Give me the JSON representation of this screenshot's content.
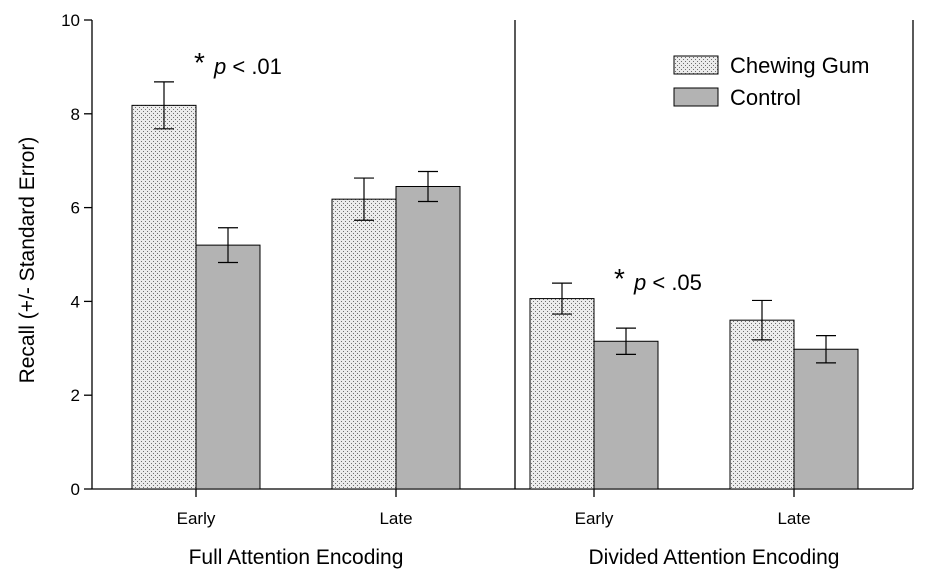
{
  "chart_data": {
    "type": "bar",
    "title": "",
    "ylabel": "Recall (+/- Standard Error)",
    "ylim": [
      0,
      10
    ],
    "yticks": [
      0,
      2,
      4,
      6,
      8,
      10
    ],
    "grid": false,
    "legend_position": "top-right",
    "groups": [
      {
        "label": "Full Attention Encoding",
        "categories": [
          "Early",
          "Late"
        ]
      },
      {
        "label": "Divided Attention Encoding",
        "categories": [
          "Early",
          "Late"
        ]
      }
    ],
    "series": [
      {
        "name": "Chewing Gum",
        "pattern": "dotted",
        "fill": "#e6e6e6",
        "values": [
          8.18,
          6.18,
          4.06,
          3.6
        ],
        "errors": [
          0.5,
          0.45,
          0.33,
          0.42
        ]
      },
      {
        "name": "Control",
        "pattern": "solid",
        "fill": "#b3b3b3",
        "values": [
          5.2,
          6.45,
          3.15,
          2.98
        ],
        "errors": [
          0.37,
          0.32,
          0.28,
          0.29
        ]
      }
    ],
    "annotations": [
      {
        "star": "*",
        "text": "p < .01",
        "bar_index": 0
      },
      {
        "star": "*",
        "text": "p < .05",
        "bar_index": 2
      }
    ]
  }
}
